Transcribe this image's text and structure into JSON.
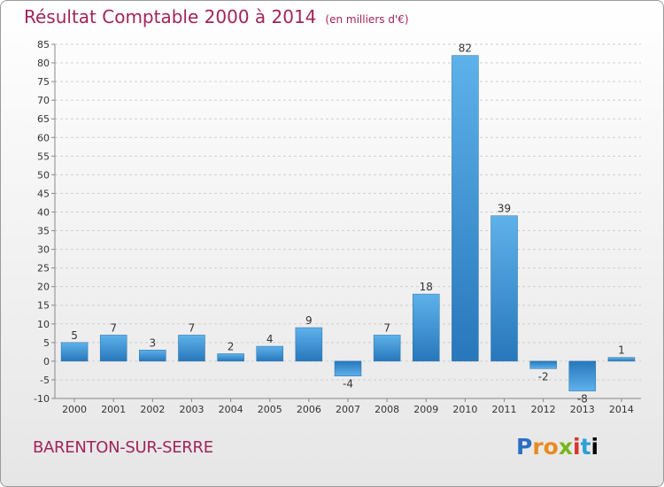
{
  "header": {
    "title": "Résultat Comptable 2000 à 2014",
    "unit": "(en milliers d'€)"
  },
  "footer": {
    "commune": "BARENTON-SUR-SERRE",
    "logo_letters": [
      "P",
      "r",
      "o",
      "x",
      "i",
      "t",
      "i"
    ]
  },
  "colors": {
    "title": "#a1245a",
    "bar_light": "#5eb2ea",
    "bar_dark": "#2777bb"
  },
  "chart_data": {
    "type": "bar",
    "categories": [
      "2000",
      "2001",
      "2002",
      "2003",
      "2004",
      "2005",
      "2006",
      "2007",
      "2008",
      "2009",
      "2010",
      "2011",
      "2012",
      "2013",
      "2014"
    ],
    "values": [
      5,
      7,
      3,
      7,
      2,
      4,
      9,
      -4,
      7,
      18,
      82,
      39,
      -2,
      -8,
      1
    ],
    "data_labels": [
      "5",
      "7",
      "3",
      "7",
      "2",
      "4",
      "9",
      "-4",
      "7",
      "18",
      "82",
      "39",
      "-2",
      "-8",
      "1"
    ],
    "y_ticks": [
      -10,
      -5,
      0,
      5,
      10,
      15,
      20,
      25,
      30,
      35,
      40,
      45,
      50,
      55,
      60,
      65,
      70,
      75,
      80,
      85
    ],
    "ylim": [
      -10,
      85
    ],
    "grid": true,
    "xlabel": "",
    "ylabel": ""
  }
}
